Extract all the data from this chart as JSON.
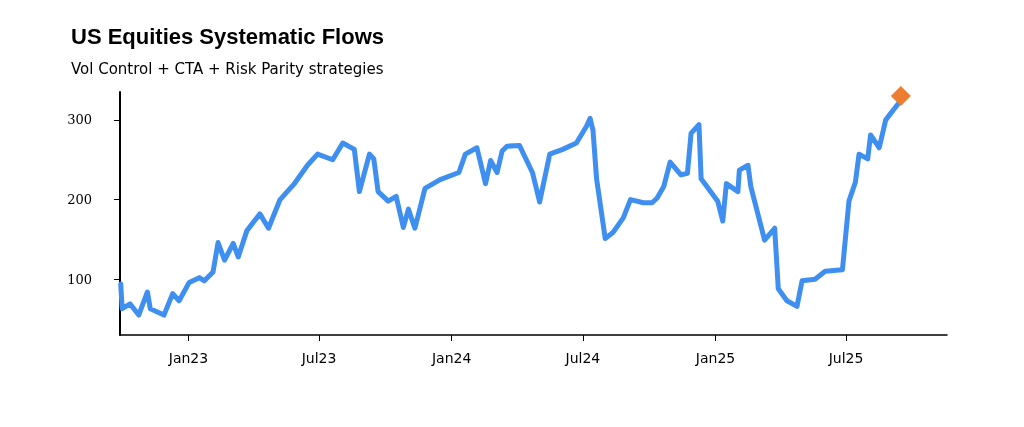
{
  "chart_data": {
    "type": "line",
    "title": "US Equities Systematic Flows",
    "subtitle": "Vol Control + CTA + Risk Parity strategies",
    "xlim": [
      "2022-09-28",
      "2025-11-18"
    ],
    "ylim": [
      30,
      335
    ],
    "yticks": [
      100,
      200,
      300
    ],
    "xticks": [
      {
        "value": "2023-01-01",
        "label": "Jan23"
      },
      {
        "value": "2023-07-01",
        "label": "Jul23"
      },
      {
        "value": "2024-01-01",
        "label": "Jan24"
      },
      {
        "value": "2024-07-01",
        "label": "Jul24"
      },
      {
        "value": "2025-01-01",
        "label": "Jan25"
      },
      {
        "value": "2025-07-01",
        "label": "Jul25"
      }
    ],
    "grid": false,
    "line_style": "solid",
    "series": [
      {
        "color": "#3f8ff0",
        "marker": "none",
        "x": [
          "2022-09-29",
          "2022-10-01",
          "2022-10-12",
          "2022-10-24",
          "2022-11-05",
          "2022-11-09",
          "2022-11-28",
          "2022-12-10",
          "2022-12-19",
          "2023-01-02",
          "2023-01-16",
          "2023-01-23",
          "2023-02-04",
          "2023-02-11",
          "2023-02-20",
          "2023-03-04",
          "2023-03-11",
          "2023-03-23",
          "2023-04-10",
          "2023-04-22",
          "2023-05-08",
          "2023-05-27",
          "2023-06-15",
          "2023-06-29",
          "2023-07-20",
          "2023-08-03",
          "2023-08-19",
          "2023-08-26",
          "2023-09-09",
          "2023-09-15",
          "2023-09-21",
          "2023-10-05",
          "2023-10-16",
          "2023-10-26",
          "2023-11-02",
          "2023-11-11",
          "2023-11-25",
          "2023-12-16",
          "2024-01-11",
          "2024-01-20",
          "2024-02-05",
          "2024-02-17",
          "2024-02-24",
          "2024-03-04",
          "2024-03-11",
          "2024-03-18",
          "2024-04-04",
          "2024-04-22",
          "2024-05-02",
          "2024-05-16",
          "2024-06-03",
          "2024-06-22",
          "2024-07-06",
          "2024-07-11",
          "2024-07-15",
          "2024-07-20",
          "2024-08-01",
          "2024-08-12",
          "2024-08-26",
          "2024-09-05",
          "2024-09-23",
          "2024-10-05",
          "2024-10-12",
          "2024-10-21",
          "2024-10-30",
          "2024-11-14",
          "2024-11-23",
          "2024-11-28",
          "2024-12-09",
          "2024-12-12",
          "2025-01-04",
          "2025-01-11",
          "2025-01-16",
          "2025-02-01",
          "2025-02-03",
          "2025-02-15",
          "2025-02-19",
          "2025-03-10",
          "2025-03-24",
          "2025-03-29",
          "2025-04-10",
          "2025-04-24",
          "2025-05-01",
          "2025-05-19",
          "2025-06-02",
          "2025-06-26",
          "2025-07-05",
          "2025-07-14",
          "2025-07-19",
          "2025-07-31",
          "2025-08-04",
          "2025-08-16",
          "2025-08-25",
          "2025-09-11"
        ],
        "values": [
          94,
          63,
          69,
          55,
          84,
          63,
          55,
          82,
          73,
          96,
          102,
          98,
          109,
          146,
          124,
          145,
          128,
          161,
          182,
          164,
          200,
          219,
          243,
          257,
          250,
          271,
          263,
          210,
          257,
          251,
          210,
          198,
          204,
          165,
          188,
          164,
          214,
          225,
          234,
          257,
          265,
          220,
          249,
          234,
          261,
          267,
          268,
          234,
          197,
          257,
          263,
          271,
          292,
          302,
          287,
          226,
          151,
          159,
          177,
          200,
          196,
          196,
          202,
          216,
          247,
          231,
          233,
          283,
          294,
          226,
          198,
          173,
          220,
          210,
          237,
          243,
          216,
          149,
          164,
          88,
          73,
          66,
          98,
          100,
          110,
          112,
          198,
          222,
          257,
          251,
          281,
          265,
          300,
          320
        ]
      },
      {
        "type": "scatter",
        "color": "#ed7d31",
        "marker": "diamond",
        "x": [
          "2025-09-15"
        ],
        "values": [
          330
        ]
      }
    ]
  }
}
